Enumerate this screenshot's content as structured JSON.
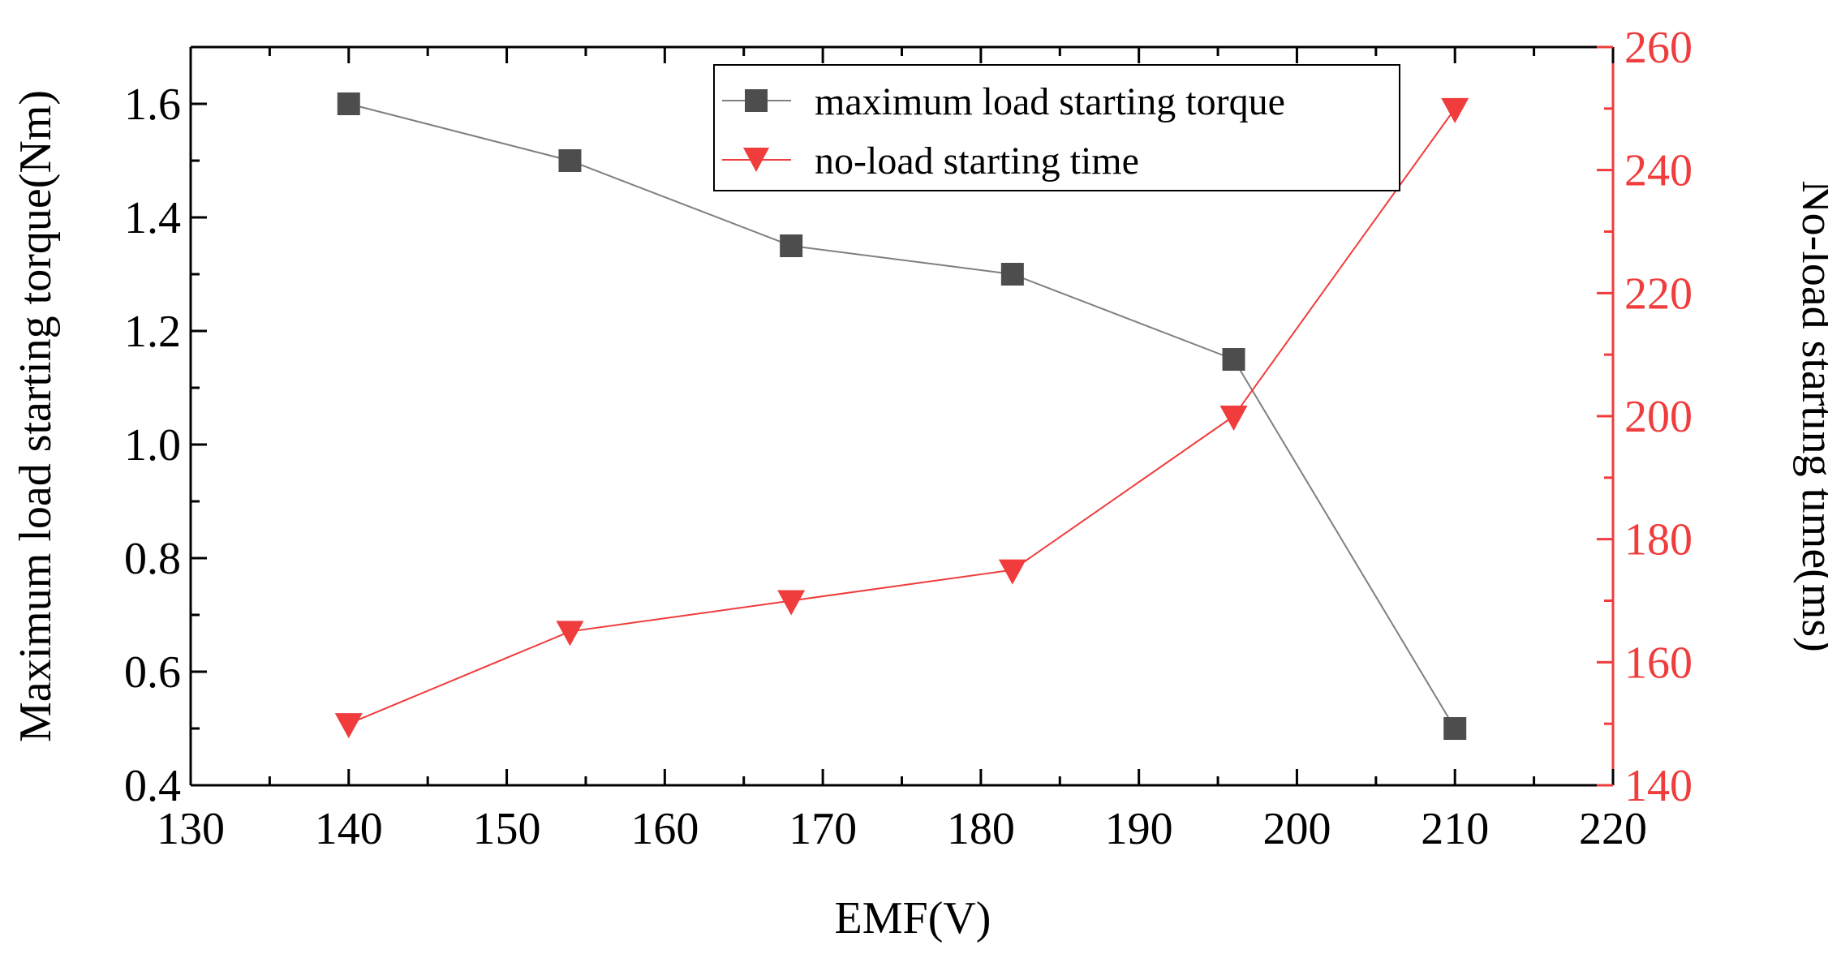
{
  "chart_data": {
    "type": "line",
    "title": "",
    "xlabel": "EMF(V)",
    "ylabel_left": "Maximum load starting torque(Nm)",
    "ylabel_right": "No-load starting time(ms)",
    "xlim": [
      130,
      220
    ],
    "ylim_left": [
      0.4,
      1.7
    ],
    "ylim_right": [
      140,
      260
    ],
    "x_ticks": [
      130,
      140,
      150,
      160,
      170,
      180,
      190,
      200,
      210,
      220
    ],
    "y_left_ticks": [
      "0.4",
      "0.6",
      "0.8",
      "1.0",
      "1.2",
      "1.4",
      "1.6"
    ],
    "y_right_ticks": [
      140,
      160,
      180,
      200,
      220,
      240,
      260
    ],
    "grid": false,
    "legend_position": "top-center",
    "x": [
      140,
      154,
      168,
      182,
      196,
      210
    ],
    "series": [
      {
        "name": "maximum load starting torque",
        "axis": "left",
        "marker": "square",
        "color": "#4d4d4d",
        "line_color": "#7f7f7f",
        "values": [
          1.6,
          1.5,
          1.35,
          1.3,
          1.15,
          0.5
        ]
      },
      {
        "name": "no-load starting time",
        "axis": "right",
        "marker": "triangle-down",
        "color": "#f03c3c",
        "line_color": "#f03c3c",
        "values": [
          150,
          165,
          170,
          175,
          200,
          250
        ]
      }
    ],
    "colors": {
      "axis_left": "#000000",
      "axis_right": "#f03c3c"
    }
  }
}
